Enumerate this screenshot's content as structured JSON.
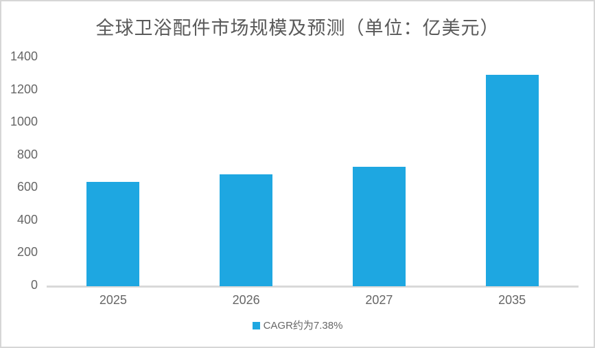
{
  "colors": {
    "bar": "#1ea7e1",
    "axis_line": "#d9d9d9",
    "frame_border": "#d6d6d6",
    "title_text": "#595959",
    "tick_text": "#666666"
  },
  "chart_data": {
    "type": "bar",
    "title": "全球卫浴配件市场规模及预测（单位：亿美元）",
    "categories": [
      "2025",
      "2026",
      "2027",
      "2035"
    ],
    "values": [
      640,
      685,
      730,
      1295
    ],
    "series_name": "CAGR约为7.38%",
    "legend": [
      "CAGR约为7.38%"
    ],
    "legend_position": "bottom",
    "xlabel": "",
    "ylabel": "",
    "ylim": [
      0,
      1400
    ],
    "yticks": [
      0,
      200,
      400,
      600,
      800,
      1000,
      1200,
      1400
    ],
    "grid": false
  },
  "legend_label": "CAGR约为7.38%"
}
